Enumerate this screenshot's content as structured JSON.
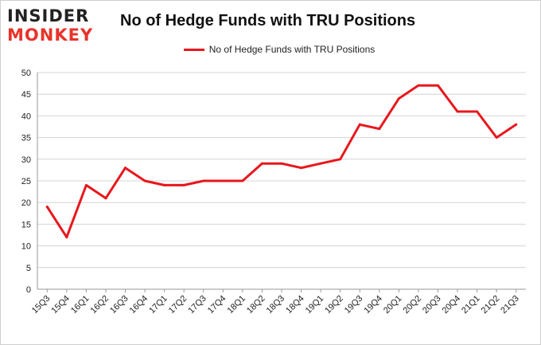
{
  "brand": {
    "line1": "INSIDER",
    "line2": "MONKEY",
    "accent": "#e8332a"
  },
  "chart_data": {
    "type": "line",
    "title": "No of Hedge Funds with TRU Positions",
    "legend_position": "top-center",
    "grid": true,
    "ylim": [
      0,
      50
    ],
    "yticks": [
      0,
      5,
      10,
      15,
      20,
      25,
      30,
      35,
      40,
      45,
      50
    ],
    "categories": [
      "15Q3",
      "15Q4",
      "16Q1",
      "16Q2",
      "16Q3",
      "16Q4",
      "17Q1",
      "17Q2",
      "17Q3",
      "17Q4",
      "18Q1",
      "18Q2",
      "18Q3",
      "18Q4",
      "19Q1",
      "19Q2",
      "19Q3",
      "19Q4",
      "20Q1",
      "20Q2",
      "20Q3",
      "20Q4",
      "21Q1",
      "21Q2",
      "21Q3"
    ],
    "series": [
      {
        "name": "No of Hedge Funds with TRU Positions",
        "color": "#e8171d",
        "values": [
          19,
          12,
          24,
          21,
          28,
          25,
          24,
          24,
          25,
          25,
          25,
          29,
          29,
          28,
          29,
          30,
          38,
          37,
          44,
          47,
          47,
          41,
          41,
          35,
          38
        ]
      }
    ]
  }
}
